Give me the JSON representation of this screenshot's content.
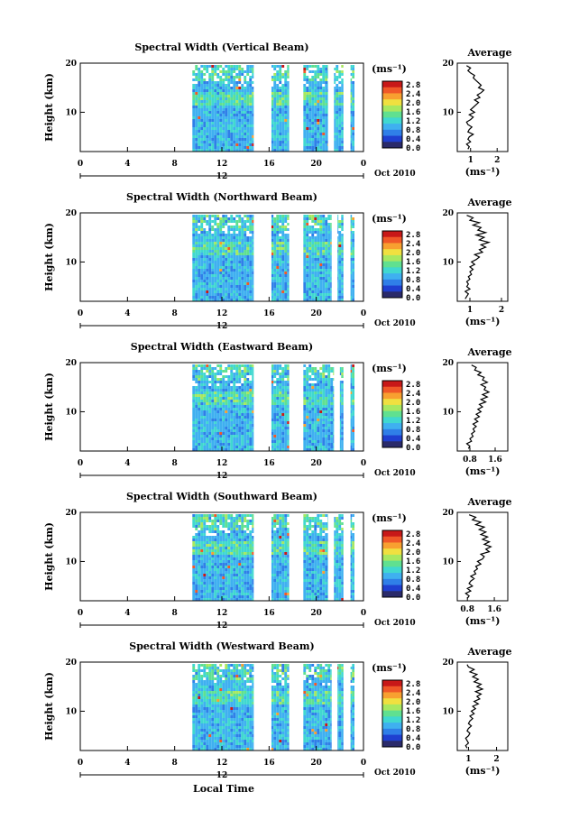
{
  "figure": {
    "xlabel_main": "Local Time",
    "date_label": "Oct 2010",
    "sub_axis_label": "12"
  },
  "chart_data": [
    {
      "type": "heatmap",
      "title": "Spectral Width (Vertical Beam)",
      "ylabel": "Height (km)",
      "unit_label": "(ms⁻¹)",
      "xlim": [
        0,
        24
      ],
      "ylim": [
        2,
        20
      ],
      "xticks": [
        "0",
        "4",
        "8",
        "12",
        "16",
        "20",
        "0"
      ],
      "yticks": [
        "20",
        "10"
      ],
      "data_start_hour": 9.5,
      "data_gaps_hours": [
        [
          14.7,
          16.2
        ],
        [
          17.7,
          18.9
        ],
        [
          21.0,
          21.5
        ],
        [
          22.3,
          22.9
        ]
      ],
      "colorbar_ticks": [
        "2.8",
        "2.4",
        "2.0",
        "1.6",
        "1.2",
        "0.8",
        "0.4",
        "0.0"
      ],
      "average": {
        "title": "Average",
        "xlabel": "(ms⁻¹)",
        "xticks": [
          "1",
          "2"
        ],
        "xlim": [
          0.5,
          2.4
        ],
        "profile_heights": [
          2.5,
          3,
          3.5,
          4,
          4.5,
          5,
          5.5,
          6,
          6.5,
          7,
          7.5,
          8,
          8.5,
          9,
          9.5,
          10,
          10.5,
          11,
          11.5,
          12,
          12.5,
          13,
          13.5,
          14,
          14.5,
          15,
          15.5,
          16,
          16.5,
          17,
          17.5,
          18,
          18.5,
          19,
          19.5
        ],
        "profile_values": [
          0.9,
          0.95,
          0.85,
          1.0,
          0.9,
          0.95,
          1.1,
          0.9,
          0.95,
          1.05,
          0.9,
          0.85,
          1.0,
          1.1,
          0.95,
          1.15,
          1.0,
          1.1,
          1.2,
          1.3,
          1.15,
          1.35,
          1.25,
          1.4,
          1.5,
          1.3,
          1.4,
          1.3,
          1.2,
          1.1,
          1.15,
          1.0,
          0.9,
          1.0,
          0.85
        ]
      }
    },
    {
      "type": "heatmap",
      "title": "Spectral Width (Northward Beam)",
      "ylabel": "Height (km)",
      "unit_label": "(ms⁻¹)",
      "xlim": [
        0,
        24
      ],
      "ylim": [
        2,
        20
      ],
      "xticks": [
        "0",
        "4",
        "8",
        "12",
        "16",
        "20",
        "0"
      ],
      "yticks": [
        "20",
        "10"
      ],
      "data_start_hour": 9.5,
      "data_gaps_hours": [
        [
          14.7,
          16.2
        ],
        [
          17.7,
          18.9
        ],
        [
          21.3,
          21.8
        ],
        [
          22.3,
          22.9
        ]
      ],
      "colorbar_ticks": [
        "2.8",
        "2.4",
        "2.0",
        "1.6",
        "1.2",
        "0.8",
        "0.4",
        "0.0"
      ],
      "average": {
        "title": "Average",
        "xlabel": "(ms⁻¹)",
        "xticks": [
          "1",
          "2"
        ],
        "xlim": [
          0.6,
          2.2
        ],
        "profile_heights": [
          2.5,
          3,
          3.5,
          4,
          4.5,
          5,
          5.5,
          6,
          6.5,
          7,
          7.5,
          8,
          8.5,
          9,
          9.5,
          10,
          10.5,
          11,
          11.5,
          12,
          12.5,
          13,
          13.5,
          14,
          14.5,
          15,
          15.5,
          16,
          16.5,
          17,
          17.5,
          18,
          18.5,
          19,
          19.5
        ],
        "profile_values": [
          0.85,
          0.9,
          0.95,
          0.85,
          1.0,
          0.9,
          0.95,
          0.9,
          1.0,
          0.95,
          1.05,
          1.0,
          1.1,
          1.0,
          1.15,
          1.05,
          1.2,
          1.3,
          1.15,
          1.4,
          1.3,
          1.5,
          1.35,
          1.6,
          1.3,
          1.45,
          1.2,
          1.5,
          1.25,
          1.35,
          1.1,
          1.3,
          1.0,
          1.1,
          0.9
        ]
      }
    },
    {
      "type": "heatmap",
      "title": "Spectral Width (Eastward Beam)",
      "ylabel": "Height (km)",
      "unit_label": "(ms⁻¹)",
      "xlim": [
        0,
        24
      ],
      "ylim": [
        2,
        20
      ],
      "xticks": [
        "0",
        "4",
        "8",
        "12",
        "16",
        "20",
        "0"
      ],
      "yticks": [
        "20",
        "10"
      ],
      "data_start_hour": 9.5,
      "data_gaps_hours": [
        [
          14.7,
          16.2
        ],
        [
          17.7,
          18.9
        ],
        [
          21.5,
          22.0
        ],
        [
          22.3,
          22.9
        ]
      ],
      "colorbar_ticks": [
        "2.8",
        "2.4",
        "2.0",
        "1.6",
        "1.2",
        "0.8",
        "0.4",
        "0.0"
      ],
      "average": {
        "title": "Average",
        "xlabel": "(ms⁻¹)",
        "xticks": [
          "0.8",
          "1.6"
        ],
        "xlim": [
          0.4,
          2.0
        ],
        "profile_heights": [
          2.5,
          3,
          3.5,
          4,
          4.5,
          5,
          5.5,
          6,
          6.5,
          7,
          7.5,
          8,
          8.5,
          9,
          9.5,
          10,
          10.5,
          11,
          11.5,
          12,
          12.5,
          13,
          13.5,
          14,
          14.5,
          15,
          15.5,
          16,
          16.5,
          17,
          17.5,
          18,
          18.5,
          19,
          19.5
        ],
        "profile_values": [
          0.75,
          0.8,
          0.7,
          0.85,
          0.8,
          0.9,
          0.85,
          0.95,
          0.9,
          1.0,
          0.9,
          1.05,
          0.95,
          1.1,
          1.0,
          1.15,
          1.05,
          1.2,
          1.1,
          1.3,
          1.15,
          1.35,
          1.2,
          1.4,
          1.25,
          1.3,
          1.15,
          1.35,
          1.2,
          1.25,
          1.05,
          1.15,
          0.95,
          1.0,
          0.85
        ]
      }
    },
    {
      "type": "heatmap",
      "title": "Spectral Width (Southward Beam)",
      "ylabel": "Height (km)",
      "unit_label": "(ms⁻¹)",
      "xlim": [
        0,
        24
      ],
      "ylim": [
        2,
        20
      ],
      "xticks": [
        "0",
        "4",
        "8",
        "12",
        "16",
        "20",
        "0"
      ],
      "yticks": [
        "20",
        "10"
      ],
      "data_start_hour": 9.5,
      "data_gaps_hours": [
        [
          14.7,
          16.2
        ],
        [
          17.7,
          18.9
        ],
        [
          21.0,
          21.5
        ],
        [
          22.3,
          22.9
        ]
      ],
      "colorbar_ticks": [
        "2.8",
        "2.4",
        "2.0",
        "1.6",
        "1.2",
        "0.8",
        "0.4",
        "0.0"
      ],
      "average": {
        "title": "Average",
        "xlabel": "(ms⁻¹)",
        "xticks": [
          "0.8",
          "1.6"
        ],
        "xlim": [
          0.5,
          2.0
        ],
        "profile_heights": [
          2.5,
          3,
          3.5,
          4,
          4.5,
          5,
          5.5,
          6,
          6.5,
          7,
          7.5,
          8,
          8.5,
          9,
          9.5,
          10,
          10.5,
          11,
          11.5,
          12,
          12.5,
          13,
          13.5,
          14,
          14.5,
          15,
          15.5,
          16,
          16.5,
          17,
          17.5,
          18,
          18.5,
          19,
          19.5
        ],
        "profile_values": [
          0.8,
          0.85,
          0.75,
          0.9,
          0.8,
          0.95,
          0.85,
          0.9,
          1.0,
          0.9,
          1.05,
          1.0,
          1.1,
          1.05,
          1.2,
          1.1,
          1.25,
          1.3,
          1.2,
          1.45,
          1.35,
          1.5,
          1.3,
          1.45,
          1.25,
          1.4,
          1.2,
          1.35,
          1.15,
          1.3,
          1.05,
          1.2,
          0.95,
          1.05,
          0.85
        ]
      }
    },
    {
      "type": "heatmap",
      "title": "Spectral Width (Westward Beam)",
      "ylabel": "Height (km)",
      "unit_label": "(ms⁻¹)",
      "xlim": [
        0,
        24
      ],
      "ylim": [
        2,
        20
      ],
      "xticks": [
        "0",
        "4",
        "8",
        "12",
        "16",
        "20",
        "0"
      ],
      "yticks": [
        "20",
        "10"
      ],
      "data_start_hour": 9.5,
      "data_gaps_hours": [
        [
          14.7,
          16.2
        ],
        [
          17.7,
          18.9
        ],
        [
          21.3,
          21.8
        ],
        [
          22.3,
          22.9
        ]
      ],
      "colorbar_ticks": [
        "2.8",
        "2.4",
        "2.0",
        "1.6",
        "1.2",
        "0.8",
        "0.4",
        "0.0"
      ],
      "average": {
        "title": "Average",
        "xlabel": "(ms⁻¹)",
        "xticks": [
          "1",
          "2"
        ],
        "xlim": [
          0.6,
          2.4
        ],
        "profile_heights": [
          2.5,
          3,
          3.5,
          4,
          4.5,
          5,
          5.5,
          6,
          6.5,
          7,
          7.5,
          8,
          8.5,
          9,
          9.5,
          10,
          10.5,
          11,
          11.5,
          12,
          12.5,
          13,
          13.5,
          14,
          14.5,
          15,
          15.5,
          16,
          16.5,
          17,
          17.5,
          18,
          18.5,
          19,
          19.5
        ],
        "profile_values": [
          0.95,
          0.9,
          1.0,
          0.95,
          0.9,
          1.0,
          1.05,
          0.95,
          1.0,
          1.1,
          1.0,
          1.05,
          1.15,
          1.05,
          1.2,
          1.1,
          1.25,
          1.15,
          1.35,
          1.2,
          1.4,
          1.3,
          1.45,
          1.25,
          1.5,
          1.3,
          1.45,
          1.2,
          1.35,
          1.15,
          1.3,
          1.05,
          1.2,
          1.0,
          0.95
        ]
      }
    }
  ],
  "colors": {
    "colormap": [
      "#2a2a6a",
      "#1f3fd0",
      "#2f7fe8",
      "#3fb0f0",
      "#40d8d0",
      "#60e090",
      "#a8e860",
      "#f0e040",
      "#f8a030",
      "#f05828",
      "#c81818"
    ]
  }
}
